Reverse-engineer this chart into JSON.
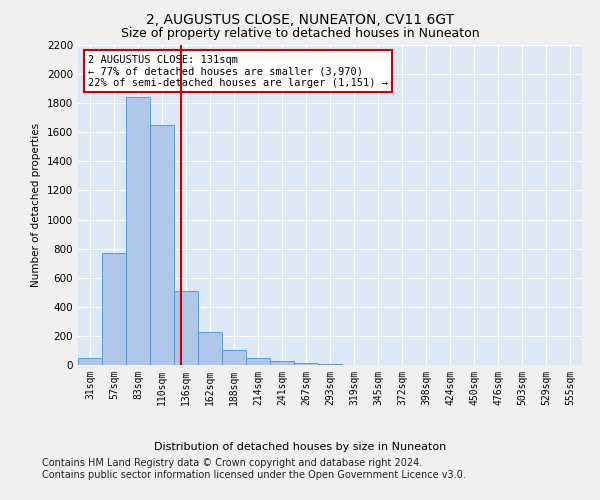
{
  "title": "2, AUGUSTUS CLOSE, NUNEATON, CV11 6GT",
  "subtitle": "Size of property relative to detached houses in Nuneaton",
  "xlabel": "Distribution of detached houses by size in Nuneaton",
  "ylabel": "Number of detached properties",
  "categories": [
    "31sqm",
    "57sqm",
    "83sqm",
    "110sqm",
    "136sqm",
    "162sqm",
    "188sqm",
    "214sqm",
    "241sqm",
    "267sqm",
    "293sqm",
    "319sqm",
    "345sqm",
    "372sqm",
    "398sqm",
    "424sqm",
    "450sqm",
    "476sqm",
    "503sqm",
    "529sqm",
    "555sqm"
  ],
  "values": [
    50,
    770,
    1840,
    1650,
    510,
    230,
    100,
    50,
    30,
    15,
    5,
    2,
    1,
    0,
    0,
    0,
    0,
    0,
    0,
    0,
    0
  ],
  "bar_color": "#aec6e8",
  "bar_edge_color": "#5b9bd5",
  "vline_color": "#cc0000",
  "annotation_text": "2 AUGUSTUS CLOSE: 131sqm\n← 77% of detached houses are smaller (3,970)\n22% of semi-detached houses are larger (1,151) →",
  "annotation_box_color": "#ffffff",
  "annotation_box_edge": "#cc0000",
  "ylim": [
    0,
    2200
  ],
  "yticks": [
    0,
    200,
    400,
    600,
    800,
    1000,
    1200,
    1400,
    1600,
    1800,
    2000,
    2200
  ],
  "footer_line1": "Contains HM Land Registry data © Crown copyright and database right 2024.",
  "footer_line2": "Contains public sector information licensed under the Open Government Licence v3.0.",
  "bg_color": "#dce8f5",
  "grid_color": "#ffffff",
  "title_fontsize": 10,
  "subtitle_fontsize": 9,
  "footer_fontsize": 7,
  "vline_pos": 3.81
}
